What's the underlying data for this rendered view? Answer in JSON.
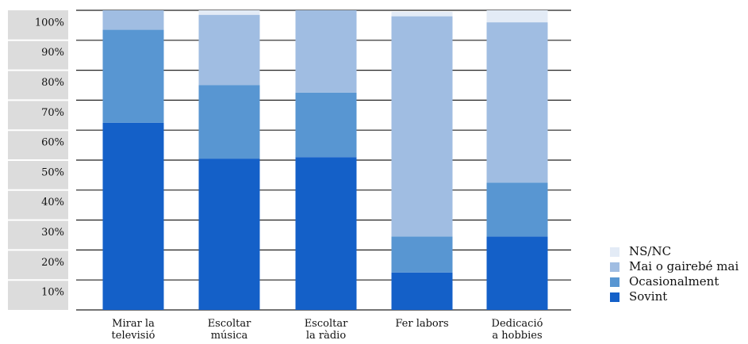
{
  "chart_data": {
    "type": "bar",
    "stacked": true,
    "categories": [
      [
        "Mirar la",
        "televisió"
      ],
      [
        "Escoltar",
        "música"
      ],
      [
        "Escoltar",
        "la ràdio"
      ],
      [
        "Fer labors"
      ],
      [
        "Dedicació",
        "a hobbies"
      ]
    ],
    "series": [
      {
        "name": "Sovint",
        "color": "#1460c8",
        "values": [
          62.5,
          50.5,
          51,
          12.5,
          24.5
        ]
      },
      {
        "name": "Ocasionalment",
        "color": "#5896d2",
        "values": [
          31,
          24.5,
          21.5,
          12,
          18
        ]
      },
      {
        "name": "Mai o gairebé mai",
        "color": "#a0bde2",
        "values": [
          6.5,
          23.5,
          27.5,
          73.5,
          53.5
        ]
      },
      {
        "name": "NS/NC",
        "color": "#e3ebf6",
        "values": [
          0,
          1.5,
          0,
          1.5,
          4
        ]
      }
    ],
    "y_ticks": [
      "10%",
      "20%",
      "30%",
      "40%",
      "50%",
      "60%",
      "70%",
      "80%",
      "90%",
      "100%"
    ],
    "ylim": [
      0,
      100
    ],
    "grid": true,
    "legend_position": "bottom-right",
    "legend_order": [
      "NS/NC",
      "Mai o gairebé mai",
      "Ocasionalment",
      "Sovint"
    ],
    "title": "",
    "xlabel": "",
    "ylabel": ""
  }
}
